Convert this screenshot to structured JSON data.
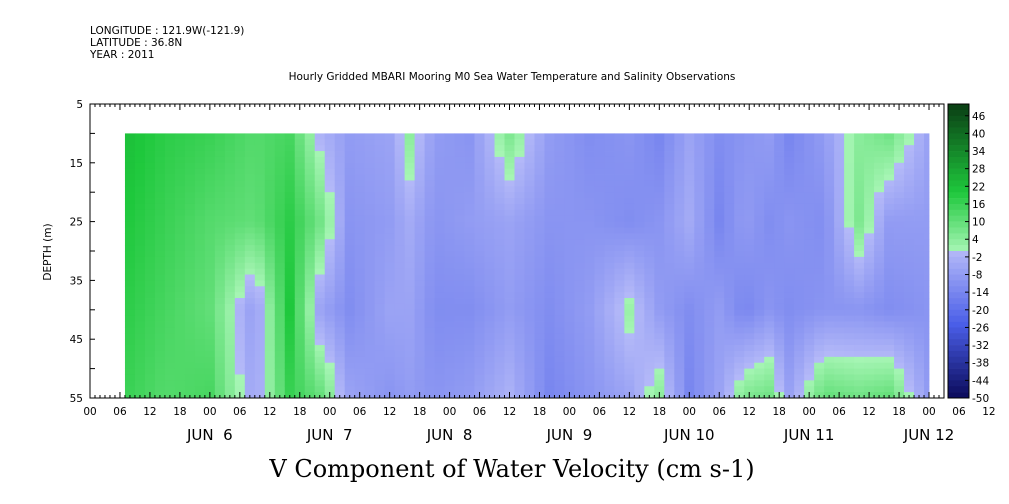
{
  "header": {
    "longitude": "LONGITUDE : 121.9W(-121.9)",
    "latitude": "LATITUDE : 36.8N",
    "year": "YEAR : 2011"
  },
  "chart_data": {
    "type": "heatmap",
    "title": "Hourly Gridded MBARI Mooring M0 Sea Water Temperature and Salinity Observations",
    "xlabel": "V Component of Water Velocity (cm s-1)",
    "ylabel": "DEPTH (m)",
    "y_ticks": [
      "5",
      "15",
      "25",
      "35",
      "45",
      "55"
    ],
    "ylim": [
      5,
      55
    ],
    "y_inverted": true,
    "data_depth_range": [
      10,
      55
    ],
    "x_start": "2011-06-05 00:00",
    "x_end": "2011-06-12 03:00",
    "data_start": "2011-06-05 07:00",
    "data_end": "2011-06-12 00:00",
    "x_tick_labels": [
      "00",
      "06",
      "12",
      "18",
      "00",
      "06",
      "12",
      "18",
      "00",
      "06",
      "12",
      "18",
      "00",
      "06",
      "12",
      "18",
      "00",
      "06",
      "12",
      "18",
      "00",
      "06",
      "12",
      "18",
      "00",
      "06",
      "12",
      "18",
      "00",
      "06",
      "12",
      "18",
      "00"
    ],
    "day_labels": [
      "JUN  6",
      "JUN  7",
      "JUN  8",
      "JUN  9",
      "JUN 10",
      "JUN 11",
      "JUN 12"
    ],
    "colorbar": {
      "labels": [
        "46",
        "40",
        "34",
        "28",
        "22",
        "16",
        "10",
        "4",
        "-2",
        "-8",
        "-14",
        "-20",
        "-26",
        "-32",
        "-38",
        "-44",
        "-50"
      ],
      "range": [
        -50,
        50
      ],
      "colors": {
        "pos_dark": "#0a3d14",
        "pos_mid": "#1ec83c",
        "pos_light": "#a6f5b4",
        "neg_light": "#b4b9f8",
        "neg_mid": "#4a5ee8",
        "neg_dark": "#0a0a5a"
      }
    },
    "profile_time_hours": [
      7,
      15,
      24,
      33,
      40,
      46,
      52,
      60,
      64,
      69,
      76,
      84,
      92,
      100,
      108,
      114,
      120,
      126,
      131,
      136,
      140,
      147,
      154,
      160,
      168
    ],
    "profile_depth_m": [
      10,
      25,
      40,
      55
    ],
    "values": [
      [
        22,
        20,
        18,
        16
      ],
      [
        18,
        16,
        14,
        12
      ],
      [
        16,
        12,
        10,
        14
      ],
      [
        12,
        10,
        -8,
        -6
      ],
      [
        14,
        18,
        20,
        16
      ],
      [
        -2,
        8,
        -6,
        10
      ],
      [
        -8,
        -10,
        -12,
        -6
      ],
      [
        -6,
        -8,
        -6,
        -10
      ],
      [
        4,
        -4,
        -6,
        -8
      ],
      [
        -8,
        -10,
        -12,
        -10
      ],
      [
        -10,
        -8,
        -12,
        -8
      ],
      [
        6,
        -6,
        -8,
        -2
      ],
      [
        -8,
        -10,
        -12,
        -14
      ],
      [
        -12,
        -10,
        -8,
        -10
      ],
      [
        -10,
        -12,
        2,
        -6
      ],
      [
        -14,
        -10,
        -8,
        4
      ],
      [
        -6,
        -4,
        -12,
        -14
      ],
      [
        -12,
        -14,
        -8,
        -6
      ],
      [
        -10,
        -8,
        -14,
        6
      ],
      [
        -8,
        -12,
        -10,
        8
      ],
      [
        -14,
        -10,
        -12,
        -6
      ],
      [
        -8,
        -12,
        -10,
        10
      ],
      [
        4,
        6,
        -10,
        8
      ],
      [
        8,
        -8,
        -12,
        10
      ],
      [
        -6,
        -8,
        -10,
        -8
      ]
    ]
  }
}
